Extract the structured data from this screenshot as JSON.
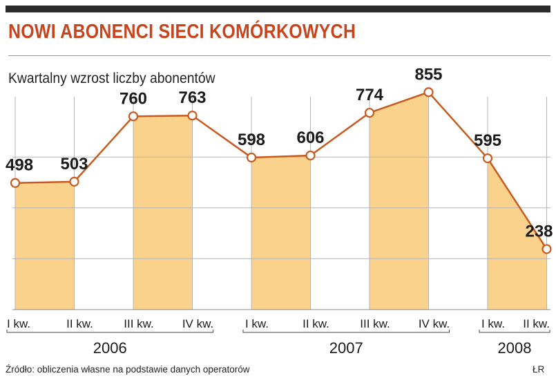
{
  "header": {
    "title": "NOWI ABONENCI SIECI KOMÓRKOWYCH",
    "subtitle": "Kwartalny wzrost liczby abonentów"
  },
  "footer": {
    "source": "Źródło: obliczenia własne na podstawie danych operatorów",
    "credit": "ŁR"
  },
  "colors": {
    "title": "#c7441d",
    "line": "#c75a1e",
    "fill": "#fbd28b",
    "grid": "#b5b5b5"
  },
  "chart_data": {
    "type": "area",
    "categories": [
      "I kw.",
      "II kw.",
      "III kw.",
      "IV kw.",
      "I kw.",
      "II kw.",
      "III kw.",
      "IV kw.",
      "I kw.",
      "II kw."
    ],
    "years": [
      {
        "label": "2006",
        "quarters": 4
      },
      {
        "label": "2007",
        "quarters": 4
      },
      {
        "label": "2008",
        "quarters": 2
      }
    ],
    "values": [
      498,
      503,
      760,
      763,
      598,
      606,
      774,
      855,
      595,
      238
    ],
    "shaded_segments": [
      [
        0,
        1
      ],
      [
        2,
        3
      ],
      [
        4,
        5
      ],
      [
        6,
        7
      ],
      [
        8,
        9
      ]
    ],
    "ylim": [
      0,
      1000
    ],
    "grid": true,
    "xlabel": "",
    "ylabel": ""
  }
}
